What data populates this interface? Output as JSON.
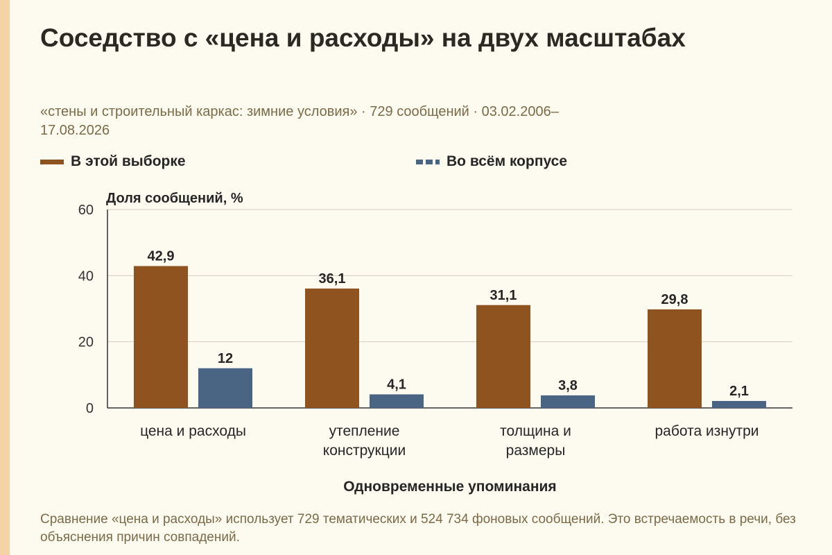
{
  "title": "Соседство с «цена и расходы» на двух масштабах",
  "subtitle": "«стены и строительный каркас: зимние условия» · 729 сообщений · 03.02.2006–17.08.2026",
  "footnote": "Сравнение «цена и расходы» использует 729 тематических и 524 734 фоновых сообщений. Это встречаемость в речи, без объяснения причин совпадений.",
  "colors": {
    "sample": "#8e531f",
    "corpus": "#4a6483",
    "background": "#fdfaf0",
    "accent_stripe": "#f6d3a4"
  },
  "chart_data": {
    "type": "bar",
    "ylabel": "Доля сообщений, %",
    "xlabel": "Одновременные упоминания",
    "ylim": [
      0,
      60
    ],
    "yticks": [
      0,
      20,
      40,
      60
    ],
    "grid": true,
    "legend_position": "top",
    "categories": [
      [
        "цена и расходы"
      ],
      [
        "утепление",
        "конструкции"
      ],
      [
        "толщина и",
        "размеры"
      ],
      [
        "работа изнутри"
      ]
    ],
    "series": [
      {
        "name": "В этой выборке",
        "values": [
          42.9,
          36.1,
          31.1,
          29.8
        ],
        "labels": [
          "42,9",
          "36,1",
          "31,1",
          "29,8"
        ]
      },
      {
        "name": "Во всём корпусе",
        "values": [
          12,
          4.1,
          3.8,
          2.1
        ],
        "labels": [
          "12",
          "4,1",
          "3,8",
          "2,1"
        ]
      }
    ]
  }
}
